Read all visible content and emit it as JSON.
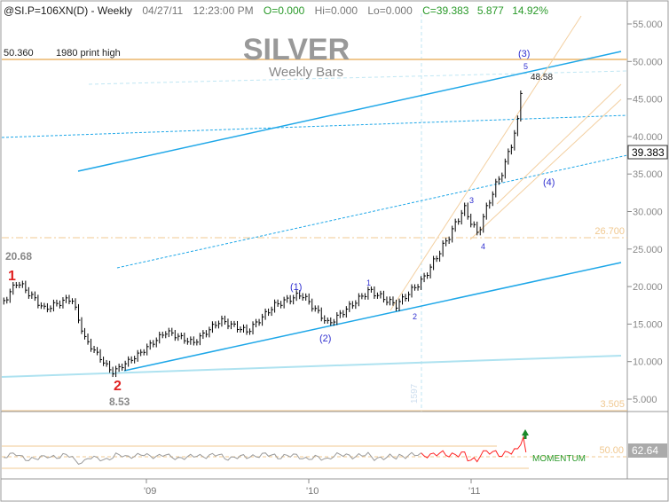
{
  "header": {
    "symbol": "@SI.P=106XN(D) - Weekly",
    "date": "04/27/11",
    "time": "12:23:00 PM",
    "open": "O=0.000",
    "high": "Hi=0.000",
    "low": "Lo=0.000",
    "close": "C=39.383",
    "change": "5.877",
    "pct": "14.92%"
  },
  "title": "SILVER",
  "subtitle": "Weekly Bars",
  "annotations": {
    "print_high_value": "50.360",
    "print_high_label": "1980 print high",
    "peak_label": "48.58",
    "last_price": "39.383",
    "level_267": "26.700",
    "level_35": "3.505",
    "high_2008": "20.68",
    "low_2008": "8.53",
    "wave_1": "1",
    "wave_2": "2",
    "w_p1": "(1)",
    "w_p2": "(2)",
    "w_p3": "(3)",
    "w_p4": "(4)",
    "w1": "1",
    "w2": "2",
    "w3": "3",
    "w4": "4",
    "w5": "5",
    "faint_label": "1597"
  },
  "momentum": {
    "label": "MOMENTUM",
    "level": "50.00",
    "value": "62.64"
  },
  "colors": {
    "bars": "#000000",
    "channel": "#1ea7e8",
    "fib": "#f0c890",
    "wave_major": "#e02020",
    "wave_minor": "#3030d0",
    "momentum_line": "#ff2020",
    "momentum_ref": "#999999"
  },
  "chart_data": {
    "type": "bar",
    "title": "SILVER",
    "subtitle": "Weekly Bars",
    "yticks": [
      "55.000",
      "50.000",
      "45.000",
      "40.000",
      "35.000",
      "30.000",
      "25.000",
      "20.000",
      "15.000",
      "10.000",
      "5.000"
    ],
    "ylim": [
      5,
      55
    ],
    "xticks": [
      "'09",
      "'10",
      "'11"
    ],
    "price_path": [
      [
        "2008-02",
        18
      ],
      [
        "2008-03",
        20.68
      ],
      [
        "2008-05",
        17
      ],
      [
        "2008-07",
        18.5
      ],
      [
        "2008-08",
        13
      ],
      [
        "2008-10",
        8.53
      ],
      [
        "2008-12",
        11
      ],
      [
        "2009-02",
        14
      ],
      [
        "2009-04",
        12.5
      ],
      [
        "2009-06",
        15.5
      ],
      [
        "2009-08",
        14
      ],
      [
        "2009-10",
        17.5
      ],
      [
        "2009-12",
        19
      ],
      [
        "2010-02",
        15
      ],
      [
        "2010-04",
        18
      ],
      [
        "2010-05",
        19.5
      ],
      [
        "2010-07",
        17.5
      ],
      [
        "2010-09",
        21
      ],
      [
        "2010-11",
        27
      ],
      [
        "2010-12",
        30.5
      ],
      [
        "2011-01",
        27
      ],
      [
        "2011-02",
        32
      ],
      [
        "2011-03",
        36
      ],
      [
        "2011-04",
        42
      ],
      [
        "2011-04-25",
        48.58
      ],
      [
        "2011-04-27",
        39.383
      ]
    ]
  }
}
